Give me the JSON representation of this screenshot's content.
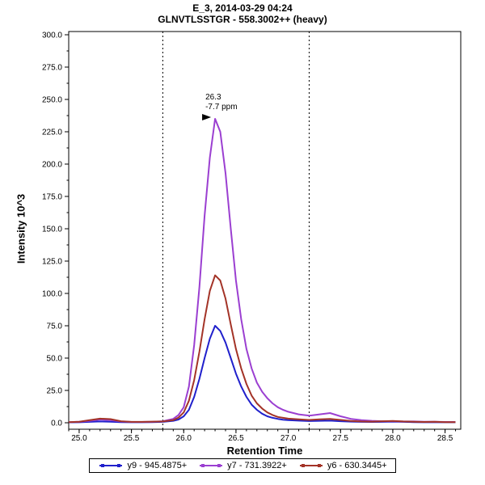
{
  "header": {
    "title_line1": "E_3, 2014-03-29 04:24",
    "title_line2": "GLNVTLSSTGR - 558.3002++ (heavy)"
  },
  "chart_data": {
    "type": "line",
    "title": "E_3, 2014-03-29 04:24",
    "subtitle": "GLNVTLSSTGR - 558.3002++ (heavy)",
    "xlabel": "Retention Time",
    "ylabel": "Intensity 10^3",
    "xlim": [
      24.9,
      28.65
    ],
    "ylim": [
      0,
      300
    ],
    "xticks": [
      25.0,
      25.5,
      26.0,
      26.5,
      27.0,
      27.5,
      28.0,
      28.5
    ],
    "yticks": [
      0,
      25,
      50,
      75,
      100,
      125,
      150,
      175,
      200,
      225,
      250,
      275,
      300
    ],
    "grid": false,
    "legend_position": "bottom",
    "integration_boundaries": [
      25.8,
      27.2
    ],
    "annotation": {
      "x": 26.3,
      "y": 235,
      "lines": [
        "26.3",
        "-7.7 ppm"
      ],
      "color": "#9b3fd1",
      "arrow_color": "#000000"
    },
    "x": [
      24.9,
      25.0,
      25.1,
      25.2,
      25.3,
      25.4,
      25.5,
      25.6,
      25.7,
      25.8,
      25.9,
      25.95,
      26.0,
      26.05,
      26.1,
      26.15,
      26.2,
      26.25,
      26.3,
      26.35,
      26.4,
      26.45,
      26.5,
      26.55,
      26.6,
      26.65,
      26.7,
      26.75,
      26.8,
      26.85,
      26.9,
      26.95,
      27.0,
      27.1,
      27.2,
      27.3,
      27.4,
      27.5,
      27.6,
      27.7,
      27.8,
      27.9,
      28.0,
      28.1,
      28.2,
      28.3,
      28.4,
      28.5,
      28.6
    ],
    "series": [
      {
        "name": "y9 - 945.4875+",
        "color": "#2020cc",
        "values": [
          0.3,
          0.4,
          0.7,
          1.0,
          0.8,
          0.5,
          0.4,
          0.4,
          0.5,
          0.7,
          1.5,
          2.5,
          5,
          10,
          20,
          34,
          50,
          65,
          75,
          71,
          62,
          50,
          38,
          28,
          20,
          14,
          10,
          7,
          5,
          3.8,
          3,
          2.4,
          2,
          1.6,
          1.3,
          1.5,
          1.6,
          1.2,
          0.9,
          0.7,
          0.6,
          0.7,
          0.9,
          0.7,
          0.5,
          0.4,
          0.5,
          0.4,
          0.4
        ]
      },
      {
        "name": "y7 - 731.3922+",
        "color": "#9b3fd1",
        "values": [
          0.5,
          0.8,
          1.5,
          2.5,
          2.0,
          1.0,
          0.6,
          0.6,
          0.8,
          1.2,
          3,
          6,
          12,
          28,
          60,
          105,
          160,
          205,
          235,
          225,
          193,
          150,
          110,
          80,
          57,
          42,
          31,
          24,
          19,
          15,
          12,
          10,
          8.5,
          6.5,
          5.5,
          6.5,
          7.5,
          5,
          3,
          2,
          1.5,
          1.2,
          1.2,
          1.0,
          1.0,
          0.8,
          0.8,
          0.6,
          0.6
        ]
      },
      {
        "name": "y6 - 630.3445+",
        "color": "#a33327",
        "values": [
          0.5,
          0.8,
          2,
          3.2,
          2.8,
          1.2,
          0.7,
          0.7,
          0.9,
          1.0,
          2,
          4,
          8,
          17,
          33,
          55,
          80,
          102,
          114,
          110,
          96,
          76,
          57,
          42,
          30,
          21,
          15,
          11,
          8,
          6,
          4.5,
          3.8,
          3.2,
          2.6,
          2.2,
          2.6,
          3,
          2.2,
          1.4,
          1.0,
          0.9,
          1.2,
          1.4,
          1.0,
          0.8,
          0.6,
          0.8,
          0.5,
          0.5
        ]
      }
    ]
  }
}
